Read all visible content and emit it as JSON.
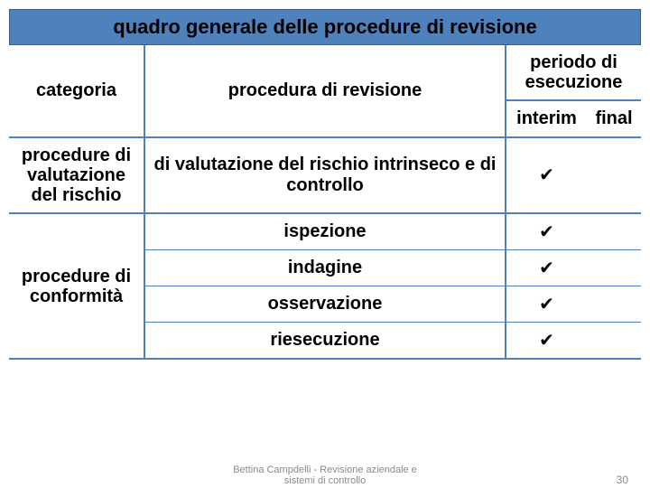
{
  "title": "quadro generale delle procedure di revisione",
  "colors": {
    "header_bg": "#4f81bd",
    "line": "#4f81bd",
    "text": "#000000",
    "footer": "#8a8a8a",
    "bg": "#ffffff"
  },
  "header": {
    "categoria": "categoria",
    "procedura": "procedura di revisione",
    "periodo_top": "periodo di",
    "periodo_bottom": "esecuzione",
    "interim": "interim",
    "final": "final"
  },
  "cat1": {
    "l1": "procedure di",
    "l2": "valutazione",
    "l3": "del rischio"
  },
  "cat2": {
    "l1": "procedure di",
    "l2": "conformità"
  },
  "rows": {
    "r1": {
      "proc_l1": "di valutazione del rischio intrinseco e di",
      "proc_l2": "controllo",
      "interim": "✔",
      "final": ""
    },
    "r2": {
      "proc": "ispezione",
      "interim": "✔",
      "final": ""
    },
    "r3": {
      "proc": "indagine",
      "interim": "✔",
      "final": ""
    },
    "r4": {
      "proc": "osservazione",
      "interim": "✔",
      "final": ""
    },
    "r5": {
      "proc": "riesecuzione",
      "interim": "✔",
      "final": ""
    }
  },
  "footer": {
    "l1": "Bettina Campdelli - Revisione aziendale e",
    "l2": "sistemi di controllo",
    "page": "30"
  }
}
